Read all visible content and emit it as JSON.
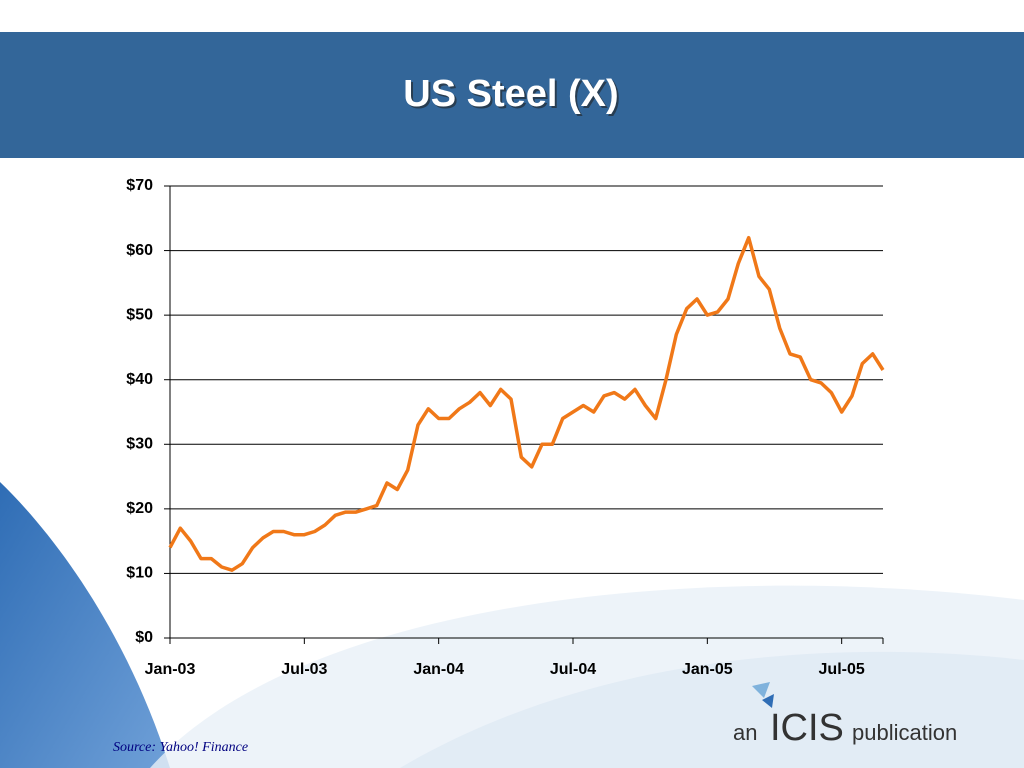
{
  "chart_data": {
    "type": "line",
    "title": "US Steel (X)",
    "source": "Source: Yahoo! Finance",
    "logo": {
      "prefix": "an",
      "name": "ICIS",
      "suffix": "publication"
    },
    "categories": [
      "Jan-03",
      null,
      null,
      null,
      null,
      null,
      null,
      null,
      null,
      null,
      null,
      null,
      null,
      "Jul-03",
      null,
      null,
      null,
      null,
      null,
      null,
      null,
      null,
      null,
      null,
      null,
      null,
      "Jan-04",
      null,
      null,
      null,
      null,
      null,
      null,
      null,
      null,
      null,
      null,
      null,
      null,
      "Jul-04",
      null,
      null,
      null,
      null,
      null,
      null,
      null,
      null,
      null,
      null,
      null,
      null,
      "Jan-05",
      null,
      null,
      null,
      null,
      null,
      null,
      null,
      null,
      null,
      null,
      null,
      null,
      "Jul-05",
      null,
      null,
      null,
      null
    ],
    "series": [
      {
        "name": "US Steel (X)",
        "color": "#f07818",
        "values": [
          14,
          17,
          15,
          12.3,
          12.3,
          11,
          10.5,
          11.5,
          14,
          15.5,
          16.5,
          16.5,
          16,
          16,
          16.5,
          17.5,
          19,
          19.5,
          19.5,
          20,
          20.5,
          24,
          23,
          26,
          33,
          35.5,
          34,
          34,
          35.5,
          36.5,
          38,
          36,
          38.5,
          37,
          28,
          26.5,
          30,
          30,
          34,
          35,
          36,
          35,
          37.5,
          38,
          37,
          38.5,
          36,
          34,
          40,
          47,
          51,
          52.5,
          50,
          50.5,
          52.5,
          58,
          62,
          56,
          54,
          48,
          44,
          43.5,
          40,
          39.5,
          38,
          35,
          37.5,
          42.5,
          44,
          41.5
        ]
      }
    ],
    "ylim": [
      0,
      70
    ],
    "yticks": [
      {
        "value": 0,
        "label": "$0"
      },
      {
        "value": 10,
        "label": "$10"
      },
      {
        "value": 20,
        "label": "$20"
      },
      {
        "value": 30,
        "label": "$30"
      },
      {
        "value": 40,
        "label": "$40"
      },
      {
        "value": 50,
        "label": "$50"
      },
      {
        "value": 60,
        "label": "$60"
      },
      {
        "value": 70,
        "label": "$70"
      }
    ],
    "grid": true
  }
}
